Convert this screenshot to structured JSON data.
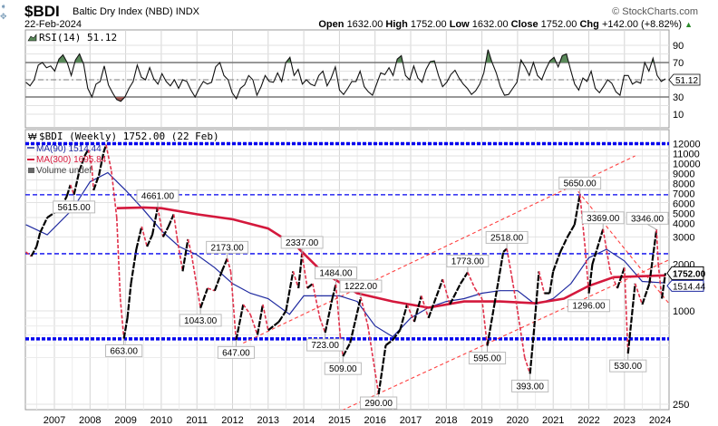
{
  "header": {
    "symbol": "$BDI",
    "name": "Baltic Dry Index (NBD) INDX",
    "date": "22-Feb-2024",
    "watermark": "© StockCharts.com",
    "open_label": "Open",
    "open": "1632.00",
    "high_label": "High",
    "high": "1752.00",
    "low_label": "Low",
    "low": "1632.00",
    "close_label": "Close",
    "close": "1752.00",
    "chg_label": "Chg",
    "chg": "+142.00 (+8.82%)",
    "chg_arrow": "▲"
  },
  "colors": {
    "price_up": "#000000",
    "price_down": "#e0304a",
    "ma90": "#1f2aa0",
    "ma300": "#d4183c",
    "hline": "#0000ee",
    "trend": "#ff4040",
    "rsi_ob": "#5a8a5a",
    "rsi_os": "#a05a55"
  },
  "chart_data": [
    {
      "type": "line",
      "title": "RSI(14) 51.12",
      "legend": "RSI(14) 51.12",
      "current_tag": "51.12",
      "yticks": [
        "90",
        "70",
        "30",
        "10"
      ],
      "ylim": [
        0,
        100
      ],
      "levels": [
        30,
        50,
        70
      ],
      "x_range": [
        2006.2,
        2024.15
      ],
      "values": [
        47,
        43,
        50,
        67,
        70,
        64,
        66,
        60,
        74,
        79,
        70,
        55,
        73,
        80,
        68,
        40,
        30,
        45,
        48,
        66,
        44,
        35,
        27,
        25,
        30,
        40,
        48,
        67,
        53,
        50,
        64,
        51,
        45,
        57,
        48,
        43,
        50,
        40,
        50,
        48,
        38,
        30,
        40,
        48,
        45,
        47,
        65,
        70,
        55,
        50,
        35,
        28,
        40,
        44,
        55,
        50,
        32,
        42,
        55,
        48,
        47,
        58,
        48,
        70,
        76,
        55,
        62,
        45,
        50,
        45,
        43,
        55,
        60,
        43,
        52,
        65,
        38,
        33,
        40,
        48,
        48,
        60,
        42,
        36,
        32,
        45,
        58,
        56,
        64,
        55,
        74,
        78,
        55,
        50,
        66,
        52,
        47,
        62,
        71,
        72,
        55,
        42,
        47,
        56,
        61,
        52,
        45,
        40,
        33,
        37,
        45,
        58,
        85,
        70,
        58,
        42,
        32,
        33,
        40,
        47,
        73,
        65,
        55,
        70,
        55,
        50,
        62,
        72,
        76,
        65,
        78,
        80,
        62,
        45,
        38,
        52,
        48,
        60,
        40,
        35,
        42,
        50,
        46,
        36,
        32,
        55,
        55,
        45,
        48,
        46,
        70,
        60,
        75,
        55,
        48,
        51
      ]
    },
    {
      "type": "line",
      "title": "$BDI (Weekly) 1752.00 (22 Feb)",
      "legend": [
        "MA(90) 1514.44",
        "MA(300) 1695.84",
        "Volume undef"
      ],
      "yscale": "log",
      "ylim": [
        230,
        13000
      ],
      "yticks": [
        "12000",
        "11000",
        "10000",
        "9000",
        "8000",
        "7000",
        "6000",
        "5000",
        "4000",
        "3000",
        "2000",
        "1000",
        "250"
      ],
      "ytick_values": [
        12000,
        11000,
        10000,
        9000,
        8000,
        7000,
        6000,
        5000,
        4000,
        3000,
        2000,
        1000,
        250
      ],
      "xticks": [
        "2007",
        "2008",
        "2009",
        "2010",
        "2011",
        "2012",
        "2013",
        "2014",
        "2015",
        "2016",
        "2017",
        "2018",
        "2019",
        "2020",
        "2021",
        "2022",
        "2023",
        "2024"
      ],
      "last_price_tag": "1752.00",
      "ma90_tag": "1514.44",
      "price": [
        [
          2006.2,
          2400
        ],
        [
          2006.35,
          2250
        ],
        [
          2006.5,
          2600
        ],
        [
          2006.6,
          3200
        ],
        [
          2006.8,
          4000
        ],
        [
          2007.0,
          4300
        ],
        [
          2007.2,
          4700
        ],
        [
          2007.35,
          5500
        ],
        [
          2007.45,
          6500
        ],
        [
          2007.55,
          5615
        ],
        [
          2007.7,
          8000
        ],
        [
          2007.85,
          10000
        ],
        [
          2007.95,
          11000
        ],
        [
          2008.05,
          8500
        ],
        [
          2008.1,
          6000
        ],
        [
          2008.25,
          7500
        ],
        [
          2008.38,
          10500
        ],
        [
          2008.45,
          11800
        ],
        [
          2008.6,
          8000
        ],
        [
          2008.75,
          4000
        ],
        [
          2008.85,
          1200
        ],
        [
          2008.95,
          663
        ],
        [
          2009.05,
          900
        ],
        [
          2009.15,
          1500
        ],
        [
          2009.3,
          2500
        ],
        [
          2009.45,
          3500
        ],
        [
          2009.6,
          2600
        ],
        [
          2009.75,
          3100
        ],
        [
          2009.9,
          4661
        ],
        [
          2010.05,
          3000
        ],
        [
          2010.2,
          3500
        ],
        [
          2010.35,
          4200
        ],
        [
          2010.45,
          2900
        ],
        [
          2010.6,
          1800
        ],
        [
          2010.75,
          2900
        ],
        [
          2010.85,
          2300
        ],
        [
          2011.1,
          1043
        ],
        [
          2011.3,
          1400
        ],
        [
          2011.5,
          1350
        ],
        [
          2011.7,
          1800
        ],
        [
          2011.85,
          2173
        ],
        [
          2011.95,
          1800
        ],
        [
          2012.1,
          647
        ],
        [
          2012.3,
          1100
        ],
        [
          2012.5,
          950
        ],
        [
          2012.7,
          700
        ],
        [
          2012.85,
          1100
        ],
        [
          2013.0,
          750
        ],
        [
          2013.3,
          850
        ],
        [
          2013.5,
          1000
        ],
        [
          2013.7,
          1800
        ],
        [
          2013.85,
          1400
        ],
        [
          2013.95,
          2337
        ],
        [
          2014.1,
          1400
        ],
        [
          2014.25,
          1500
        ],
        [
          2014.45,
          900
        ],
        [
          2014.6,
          723
        ],
        [
          2014.8,
          1200
        ],
        [
          2014.9,
          1484
        ],
        [
          2015.02,
          700
        ],
        [
          2015.1,
          509
        ],
        [
          2015.3,
          620
        ],
        [
          2015.6,
          1222
        ],
        [
          2015.8,
          800
        ],
        [
          2016.1,
          290
        ],
        [
          2016.3,
          600
        ],
        [
          2016.5,
          650
        ],
        [
          2016.7,
          750
        ],
        [
          2016.9,
          1100
        ],
        [
          2017.1,
          850
        ],
        [
          2017.3,
          1250
        ],
        [
          2017.5,
          900
        ],
        [
          2017.9,
          1600
        ],
        [
          2018.1,
          1100
        ],
        [
          2018.4,
          1500
        ],
        [
          2018.6,
          1773
        ],
        [
          2018.8,
          1400
        ],
        [
          2019.0,
          1200
        ],
        [
          2019.15,
          595
        ],
        [
          2019.35,
          1100
        ],
        [
          2019.6,
          2400
        ],
        [
          2019.7,
          2518
        ],
        [
          2019.85,
          1600
        ],
        [
          2020.0,
          1000
        ],
        [
          2020.2,
          500
        ],
        [
          2020.35,
          393
        ],
        [
          2020.45,
          700
        ],
        [
          2020.6,
          1800
        ],
        [
          2020.75,
          1300
        ],
        [
          2020.9,
          1300
        ],
        [
          2021.0,
          1800
        ],
        [
          2021.2,
          2400
        ],
        [
          2021.4,
          3000
        ],
        [
          2021.6,
          3600
        ],
        [
          2021.75,
          5650
        ],
        [
          2021.9,
          2500
        ],
        [
          2022.0,
          1296
        ],
        [
          2022.1,
          2000
        ],
        [
          2022.4,
          3369
        ],
        [
          2022.6,
          1800
        ],
        [
          2022.8,
          1400
        ],
        [
          2023.0,
          1900
        ],
        [
          2023.1,
          530
        ],
        [
          2023.3,
          1500
        ],
        [
          2023.5,
          1100
        ],
        [
          2023.7,
          1500
        ],
        [
          2023.9,
          3346
        ],
        [
          2023.95,
          2000
        ],
        [
          2024.05,
          1200
        ],
        [
          2024.15,
          1752
        ]
      ],
      "ma90": [
        [
          2006.2,
          3600
        ],
        [
          2006.8,
          3100
        ],
        [
          2007.5,
          4500
        ],
        [
          2008.0,
          6800
        ],
        [
          2008.5,
          7800
        ],
        [
          2009.0,
          6000
        ],
        [
          2009.5,
          4500
        ],
        [
          2010.0,
          3300
        ],
        [
          2010.5,
          2600
        ],
        [
          2011.0,
          2300
        ],
        [
          2011.5,
          1900
        ],
        [
          2012.0,
          1500
        ],
        [
          2012.5,
          1300
        ],
        [
          2013.0,
          1200
        ],
        [
          2013.6,
          950
        ],
        [
          2014.0,
          1250
        ],
        [
          2014.5,
          1250
        ],
        [
          2015.0,
          1250
        ],
        [
          2015.5,
          1150
        ],
        [
          2016.0,
          800
        ],
        [
          2016.5,
          680
        ],
        [
          2017.0,
          900
        ],
        [
          2017.5,
          1050
        ],
        [
          2018.0,
          1150
        ],
        [
          2018.5,
          1200
        ],
        [
          2019.0,
          1300
        ],
        [
          2019.5,
          1350
        ],
        [
          2020.0,
          1350
        ],
        [
          2020.5,
          1100
        ],
        [
          2021.0,
          1200
        ],
        [
          2021.5,
          1500
        ],
        [
          2022.0,
          2200
        ],
        [
          2022.5,
          2500
        ],
        [
          2023.0,
          2100
        ],
        [
          2023.5,
          1550
        ],
        [
          2024.15,
          1514
        ]
      ],
      "ma300": [
        [
          2008.75,
          4600
        ],
        [
          2009.5,
          4650
        ],
        [
          2010.0,
          4600
        ],
        [
          2011.0,
          4200
        ],
        [
          2012.0,
          3900
        ],
        [
          2013.0,
          3400
        ],
        [
          2013.8,
          2600
        ],
        [
          2014.5,
          1800
        ],
        [
          2015.5,
          1300
        ],
        [
          2016.5,
          1150
        ],
        [
          2017.5,
          1050
        ],
        [
          2018.5,
          1150
        ],
        [
          2019.5,
          1150
        ],
        [
          2020.5,
          1120
        ],
        [
          2021.3,
          1200
        ],
        [
          2022.0,
          1450
        ],
        [
          2022.7,
          1650
        ],
        [
          2024.15,
          1696
        ]
      ],
      "horizontal_levels": [
        {
          "value": 12000,
          "style": "thick"
        },
        {
          "value": 5615,
          "style": "thin"
        },
        {
          "value": 2337,
          "style": "thin"
        },
        {
          "value": 660,
          "style": "thick"
        }
      ],
      "trendlines": [
        [
          [
            2012.3,
            620
          ],
          [
            2023.3,
            10000
          ]
        ],
        [
          [
            2014.1,
            180
          ],
          [
            2024.9,
            2500
          ]
        ],
        [
          [
            2021.7,
            5900
          ],
          [
            2025.2,
            600
          ]
        ]
      ],
      "annotations": [
        {
          "label": "5615.00",
          "x": 2007.55,
          "y": 5615,
          "pos": "below"
        },
        {
          "label": "4661.00",
          "x": 2009.9,
          "y": 4661,
          "pos": "above"
        },
        {
          "label": "663.00",
          "x": 2008.95,
          "y": 663,
          "pos": "below"
        },
        {
          "label": "1043.00",
          "x": 2011.1,
          "y": 1043,
          "pos": "below"
        },
        {
          "label": "2173.00",
          "x": 2011.85,
          "y": 2173,
          "pos": "above"
        },
        {
          "label": "647.00",
          "x": 2012.1,
          "y": 647,
          "pos": "below"
        },
        {
          "label": "2337.00",
          "x": 2013.95,
          "y": 2337,
          "pos": "above"
        },
        {
          "label": "1484.00",
          "x": 2014.9,
          "y": 1484,
          "pos": "above"
        },
        {
          "label": "723.00",
          "x": 2014.6,
          "y": 723,
          "pos": "below"
        },
        {
          "label": "1222.00",
          "x": 2015.6,
          "y": 1222,
          "pos": "above"
        },
        {
          "label": "509.00",
          "x": 2015.1,
          "y": 509,
          "pos": "below"
        },
        {
          "label": "290.00",
          "x": 2016.1,
          "y": 290,
          "pos": "below"
        },
        {
          "label": "1773.00",
          "x": 2018.6,
          "y": 1773,
          "pos": "above"
        },
        {
          "label": "595.00",
          "x": 2019.15,
          "y": 595,
          "pos": "below"
        },
        {
          "label": "2518.00",
          "x": 2019.7,
          "y": 2518,
          "pos": "above"
        },
        {
          "label": "393.00",
          "x": 2020.35,
          "y": 393,
          "pos": "below"
        },
        {
          "label": "5650.00",
          "x": 2021.75,
          "y": 5650,
          "pos": "above"
        },
        {
          "label": "3369.00",
          "x": 2022.4,
          "y": 3369,
          "pos": "above"
        },
        {
          "label": "1296.00",
          "x": 2022.0,
          "y": 1296,
          "pos": "below"
        },
        {
          "label": "530.00",
          "x": 2023.1,
          "y": 530,
          "pos": "below"
        },
        {
          "label": "3346.00",
          "x": 2023.9,
          "y": 3346,
          "pos": "above"
        }
      ]
    }
  ]
}
